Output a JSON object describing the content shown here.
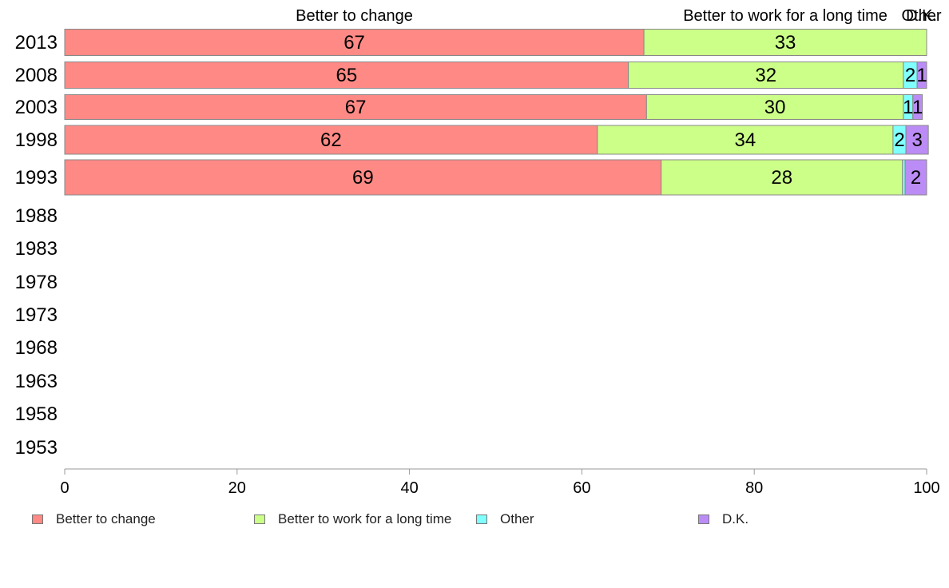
{
  "chart_data": {
    "type": "bar",
    "orientation": "horizontal",
    "stacked": true,
    "categories": [
      "2013",
      "2008",
      "2003",
      "1998",
      "1993",
      "1988",
      "1983",
      "1978",
      "1973",
      "1968",
      "1963",
      "1958",
      "1953"
    ],
    "series": [
      {
        "name": "Better to change",
        "color": "#ff8a85",
        "values": [
          67.2,
          65.4,
          67.5,
          61.8,
          69.2,
          null,
          null,
          null,
          null,
          null,
          null,
          null,
          null
        ],
        "labels": [
          "67",
          "65",
          "67",
          "62",
          "69",
          "",
          "",
          "",
          "",
          "",
          "",
          "",
          ""
        ]
      },
      {
        "name": "Better to work for a long time",
        "color": "#ccff88",
        "values": [
          32.8,
          31.9,
          29.8,
          34.3,
          28.0,
          null,
          null,
          null,
          null,
          null,
          null,
          null,
          null
        ],
        "labels": [
          "33",
          "32",
          "30",
          "34",
          "28",
          "",
          "",
          "",
          "",
          "",
          "",
          "",
          ""
        ]
      },
      {
        "name": "Other",
        "color": "#80ffff",
        "values": [
          0,
          1.6,
          1.1,
          1.5,
          0.3,
          null,
          null,
          null,
          null,
          null,
          null,
          null,
          null
        ],
        "labels": [
          "",
          "2",
          "1",
          "2",
          "",
          "",
          "",
          "",
          "",
          "",
          "",
          "",
          ""
        ]
      },
      {
        "name": "D.K.",
        "color": "#bb8cf5",
        "values": [
          0,
          1.1,
          1.1,
          2.6,
          2.5,
          null,
          null,
          null,
          null,
          null,
          null,
          null,
          null
        ],
        "labels": [
          "",
          "1",
          "1",
          "3",
          "2",
          "",
          "",
          "",
          "",
          "",
          "",
          "",
          ""
        ]
      }
    ],
    "top_labels": [
      {
        "text": "Better to change",
        "at": 33.6
      },
      {
        "text": "Better to work for a long time",
        "at": 83.6
      },
      {
        "text": "Other",
        "at": 99.4
      },
      {
        "text": "D.K.",
        "at": 99.4
      }
    ],
    "xlim": [
      0,
      100
    ],
    "xticks": [
      0,
      20,
      40,
      60,
      80,
      100
    ],
    "grid": false,
    "legend": {
      "position": "bottom",
      "items": [
        "Better to change",
        "Better to work for a long time",
        "Other",
        "D.K."
      ]
    },
    "title": "",
    "xlabel": "",
    "ylabel": ""
  }
}
